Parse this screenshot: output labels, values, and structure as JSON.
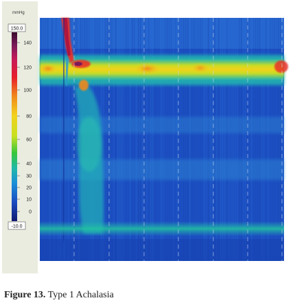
{
  "chart_data": {
    "type": "heatmap",
    "colorbar": {
      "unit": "mmHg",
      "max_label": "150.0",
      "min_label": "-10.0",
      "ticks": [
        "140",
        "120",
        "100",
        "80",
        "60",
        "40",
        "30",
        "20",
        "10",
        "0"
      ]
    },
    "colors": {
      "background": "#1c4fc2",
      "band_low": "#22b7b0",
      "band_high": "#f2d21c",
      "peak": "#c81e3a",
      "colorbar_frame": "#e9ecdf",
      "grid": "#c9d6ee"
    }
  },
  "caption": {
    "label": "Figure 13.",
    "text": " Type 1 Achalasia"
  }
}
